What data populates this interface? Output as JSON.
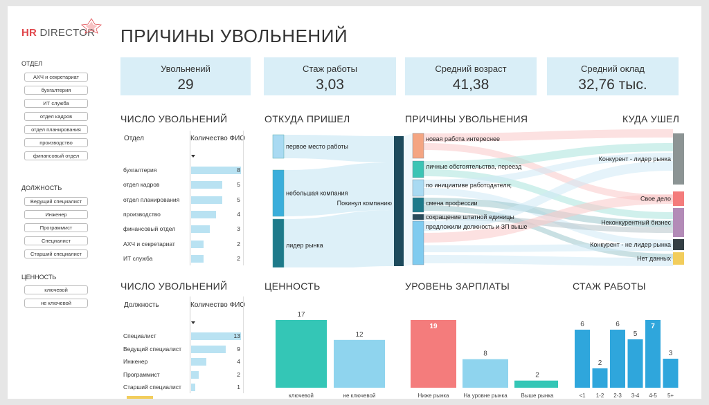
{
  "brand": {
    "hr": "HR",
    "director": "DIRECTOR"
  },
  "page_title": "ПРИЧИНЫ УВОЛЬНЕНИЙ",
  "slicers": {
    "department": {
      "title": "ОТДЕЛ",
      "items": [
        "АХЧ и секретариат",
        "бухгалтерия",
        "ИТ служба",
        "отдел кадров",
        "отдел планирования",
        "производство",
        "финансовый отдел"
      ]
    },
    "position": {
      "title": "ДОЛЖНОСТЬ",
      "items": [
        "Ведущий специалист",
        "Инженер",
        "Программист",
        "Специалист",
        "Старший специалист"
      ]
    },
    "value": {
      "title": "ЦЕННОСТЬ",
      "items": [
        "ключевой",
        "не ключевой"
      ]
    }
  },
  "kpis": [
    {
      "label": "Увольнений",
      "value": "29"
    },
    {
      "label": "Стаж работы",
      "value": "3,03"
    },
    {
      "label": "Средний возраст",
      "value": "41,38"
    },
    {
      "label": "Средний оклад",
      "value": "32,76 тыс."
    }
  ],
  "dept_table": {
    "title": "ЧИСЛО УВОЛЬНЕНИЙ",
    "col1": "Отдел",
    "col2": "Количество ФИО",
    "rows": [
      {
        "name": "бухгалтерия",
        "value": 8
      },
      {
        "name": "отдел кадров",
        "value": 5
      },
      {
        "name": "отдел планирования",
        "value": 5
      },
      {
        "name": "производство",
        "value": 4
      },
      {
        "name": "финансовый отдел",
        "value": 3
      },
      {
        "name": "АХЧ и секретариат",
        "value": 2
      },
      {
        "name": "ИТ служба",
        "value": 2
      }
    ]
  },
  "pos_table": {
    "title": "ЧИСЛО УВОЛЬНЕНИЙ",
    "col1": "Должность",
    "col2": "Количество ФИО",
    "rows": [
      {
        "name": "Специалист",
        "value": 13
      },
      {
        "name": "Ведущий специалист",
        "value": 9
      },
      {
        "name": "Инженер",
        "value": 4
      },
      {
        "name": "Программист",
        "value": 2
      },
      {
        "name": "Старший специалист",
        "value": 1
      }
    ]
  },
  "sankey": {
    "title_from": "ОТКУДА ПРИШЕЛ",
    "title_reason": "ПРИЧИНЫ УВОЛЬНЕНИЯ",
    "title_to": "КУДА УШЕЛ",
    "sources": [
      {
        "label": "первое место работы",
        "color": "#a9daf2"
      },
      {
        "label": "небольшая компания",
        "color": "#3aaedb"
      },
      {
        "label": "лидер рынка",
        "color": "#1e7a8a"
      }
    ],
    "hub": "Покинул компанию",
    "reasons": [
      {
        "label": "новая работа интереснее",
        "color": "#f4a582"
      },
      {
        "label": "личные обстоятельства, переезд",
        "color": "#3cc4b4"
      },
      {
        "label": "по инициативе работодателя;",
        "color": "#a9daf2"
      },
      {
        "label": "смена профессии",
        "color": "#1e7a8a"
      },
      {
        "label": "сокращение штатной единицы",
        "color": "#2a4b5a"
      },
      {
        "label": "предложили должность и ЗП выше",
        "color": "#7fcbef"
      }
    ],
    "destinations": [
      {
        "label": "Конкурент - лидер рынка",
        "color": "#8c9494"
      },
      {
        "label": "Свое дело",
        "color": "#f47c7c"
      },
      {
        "label": "Неконкурентный бизнес",
        "color": "#b38bb7"
      },
      {
        "label": "Конкурент - не лидер рынка",
        "color": "#333f44"
      },
      {
        "label": "Нет данных",
        "color": "#f2cd5c"
      }
    ]
  },
  "chart_data": [
    {
      "type": "bar",
      "title": "ЦЕННОСТЬ",
      "categories": [
        "ключевой",
        "не ключевой"
      ],
      "values": [
        17,
        12
      ],
      "colors": [
        "#34c6b6",
        "#8fd4ee"
      ]
    },
    {
      "type": "bar",
      "title": "УРОВЕНЬ ЗАРПЛАТЫ",
      "categories": [
        "Ниже рынка",
        "На уровне рынка",
        "Выше рынка"
      ],
      "values": [
        19,
        8,
        2
      ],
      "colors": [
        "#f47c7c",
        "#8fd4ee",
        "#34c6b6"
      ]
    },
    {
      "type": "bar",
      "title": "СТАЖ РАБОТЫ",
      "categories": [
        "<1",
        "1-2",
        "2-3",
        "3-4",
        "4-5",
        "5+"
      ],
      "values": [
        6,
        2,
        6,
        5,
        7,
        3
      ],
      "colors": [
        "#2fa6dc"
      ]
    }
  ]
}
